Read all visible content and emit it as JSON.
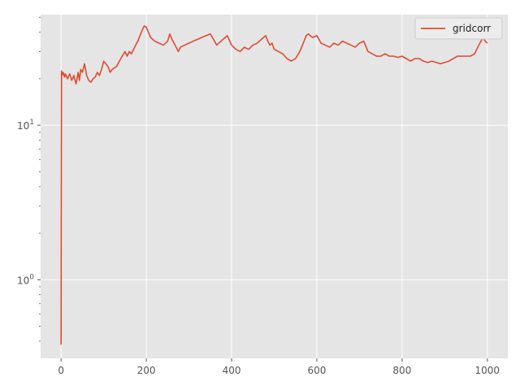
{
  "chart_data": {
    "type": "line",
    "title": "",
    "xlabel": "",
    "ylabel": "",
    "yscale": "log",
    "xlim": [
      -48,
      1048
    ],
    "ylim": [
      0.31,
      52
    ],
    "grid": true,
    "legend_position": "top-right",
    "x_ticks": [
      {
        "value": 0,
        "label": "0"
      },
      {
        "value": 200,
        "label": "200"
      },
      {
        "value": 400,
        "label": "400"
      },
      {
        "value": 600,
        "label": "600"
      },
      {
        "value": 800,
        "label": "800"
      },
      {
        "value": 1000,
        "label": "1000"
      }
    ],
    "y_ticks": [
      {
        "value": 1,
        "base": "10",
        "exp": "0"
      },
      {
        "value": 10,
        "base": "10",
        "exp": "1"
      }
    ],
    "series": [
      {
        "name": "gridcorr",
        "color": "#e24a33",
        "x": [
          0,
          1,
          2,
          5,
          8,
          10,
          15,
          20,
          25,
          30,
          35,
          40,
          43,
          46,
          50,
          55,
          60,
          65,
          70,
          75,
          80,
          85,
          90,
          95,
          100,
          105,
          110,
          115,
          120,
          130,
          140,
          150,
          155,
          160,
          165,
          170,
          175,
          180,
          185,
          190,
          195,
          200,
          205,
          210,
          220,
          230,
          240,
          250,
          255,
          260,
          265,
          270,
          275,
          280,
          290,
          300,
          310,
          320,
          330,
          340,
          350,
          355,
          360,
          365,
          370,
          380,
          390,
          400,
          410,
          420,
          430,
          440,
          450,
          460,
          470,
          480,
          485,
          490,
          495,
          500,
          510,
          520,
          530,
          540,
          550,
          560,
          570,
          575,
          580,
          590,
          600,
          610,
          620,
          630,
          640,
          650,
          660,
          670,
          680,
          690,
          700,
          710,
          720,
          730,
          740,
          750,
          760,
          770,
          780,
          790,
          800,
          810,
          820,
          830,
          840,
          850,
          860,
          870,
          880,
          890,
          900,
          910,
          920,
          930,
          940,
          950,
          960,
          970,
          980,
          985,
          990,
          995,
          1000
        ],
        "values": [
          0.38,
          22.5,
          21,
          22,
          20.5,
          21.5,
          20,
          21.5,
          19.5,
          21,
          18.5,
          22,
          19.5,
          23,
          22,
          25,
          21,
          19.5,
          19,
          20,
          20.5,
          22,
          21,
          23,
          26,
          25,
          24,
          22,
          23,
          24,
          27,
          30,
          28,
          30,
          29,
          31,
          33,
          35,
          38,
          41,
          44,
          43,
          40,
          37,
          35,
          34,
          33,
          35,
          39,
          36,
          34,
          32,
          30,
          32,
          33,
          34,
          35,
          36,
          37,
          38,
          39,
          37,
          35,
          33,
          34,
          36,
          38,
          33,
          31,
          30,
          32,
          31,
          33,
          34,
          36,
          38,
          35,
          33,
          34,
          31,
          30,
          29,
          27,
          26,
          27,
          30,
          35,
          38,
          39,
          37,
          38,
          34,
          33,
          32,
          34,
          33,
          35,
          34,
          33,
          32,
          34,
          35,
          30,
          29,
          28,
          28,
          29,
          28,
          28,
          27.5,
          28,
          27,
          26,
          27,
          27,
          26,
          25.5,
          26,
          25.5,
          25,
          25.5,
          26,
          27,
          28,
          28,
          28,
          28,
          29,
          33,
          35,
          37,
          35,
          34
        ]
      }
    ]
  }
}
